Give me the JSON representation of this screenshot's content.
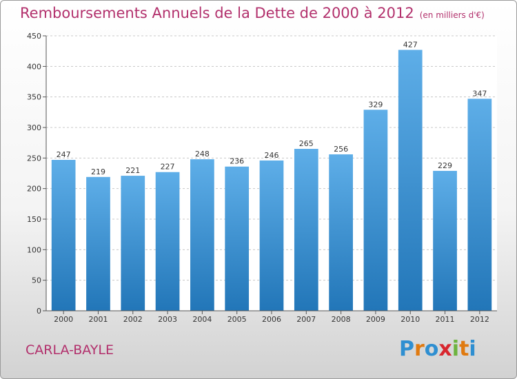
{
  "header": {
    "title": "Remboursements Annuels de la Dette de 2000 à 2012",
    "unit": "(en milliers d'€)"
  },
  "footer": {
    "commune": "CARLA-BAYLE",
    "logo": {
      "letters": [
        "P",
        "r",
        "o",
        "x",
        "i",
        "t",
        "i"
      ],
      "colors": [
        "#2f8fd1",
        "#e07a10",
        "#2f8fd1",
        "#d8262e",
        "#6db33f",
        "#e07a10",
        "#2f8fd1"
      ]
    }
  },
  "colors": {
    "bar_light": "#5eaee8",
    "bar_dark": "#2276b8",
    "title": "#b2306c",
    "grid": "#c8c8c8"
  },
  "chart_data": {
    "type": "bar",
    "title": "Remboursements Annuels de la Dette de 2000 à 2012",
    "unit": "(en milliers d'€)",
    "categories": [
      "2000",
      "2001",
      "2002",
      "2003",
      "2004",
      "2005",
      "2006",
      "2007",
      "2008",
      "2009",
      "2010",
      "2011",
      "2012"
    ],
    "values": [
      247,
      219,
      221,
      227,
      248,
      236,
      246,
      265,
      256,
      329,
      427,
      229,
      347
    ],
    "ylim": [
      0,
      450
    ],
    "yticks": [
      0,
      50,
      100,
      150,
      200,
      250,
      300,
      350,
      400,
      450
    ],
    "grid": true,
    "xlabel": "",
    "ylabel": ""
  }
}
